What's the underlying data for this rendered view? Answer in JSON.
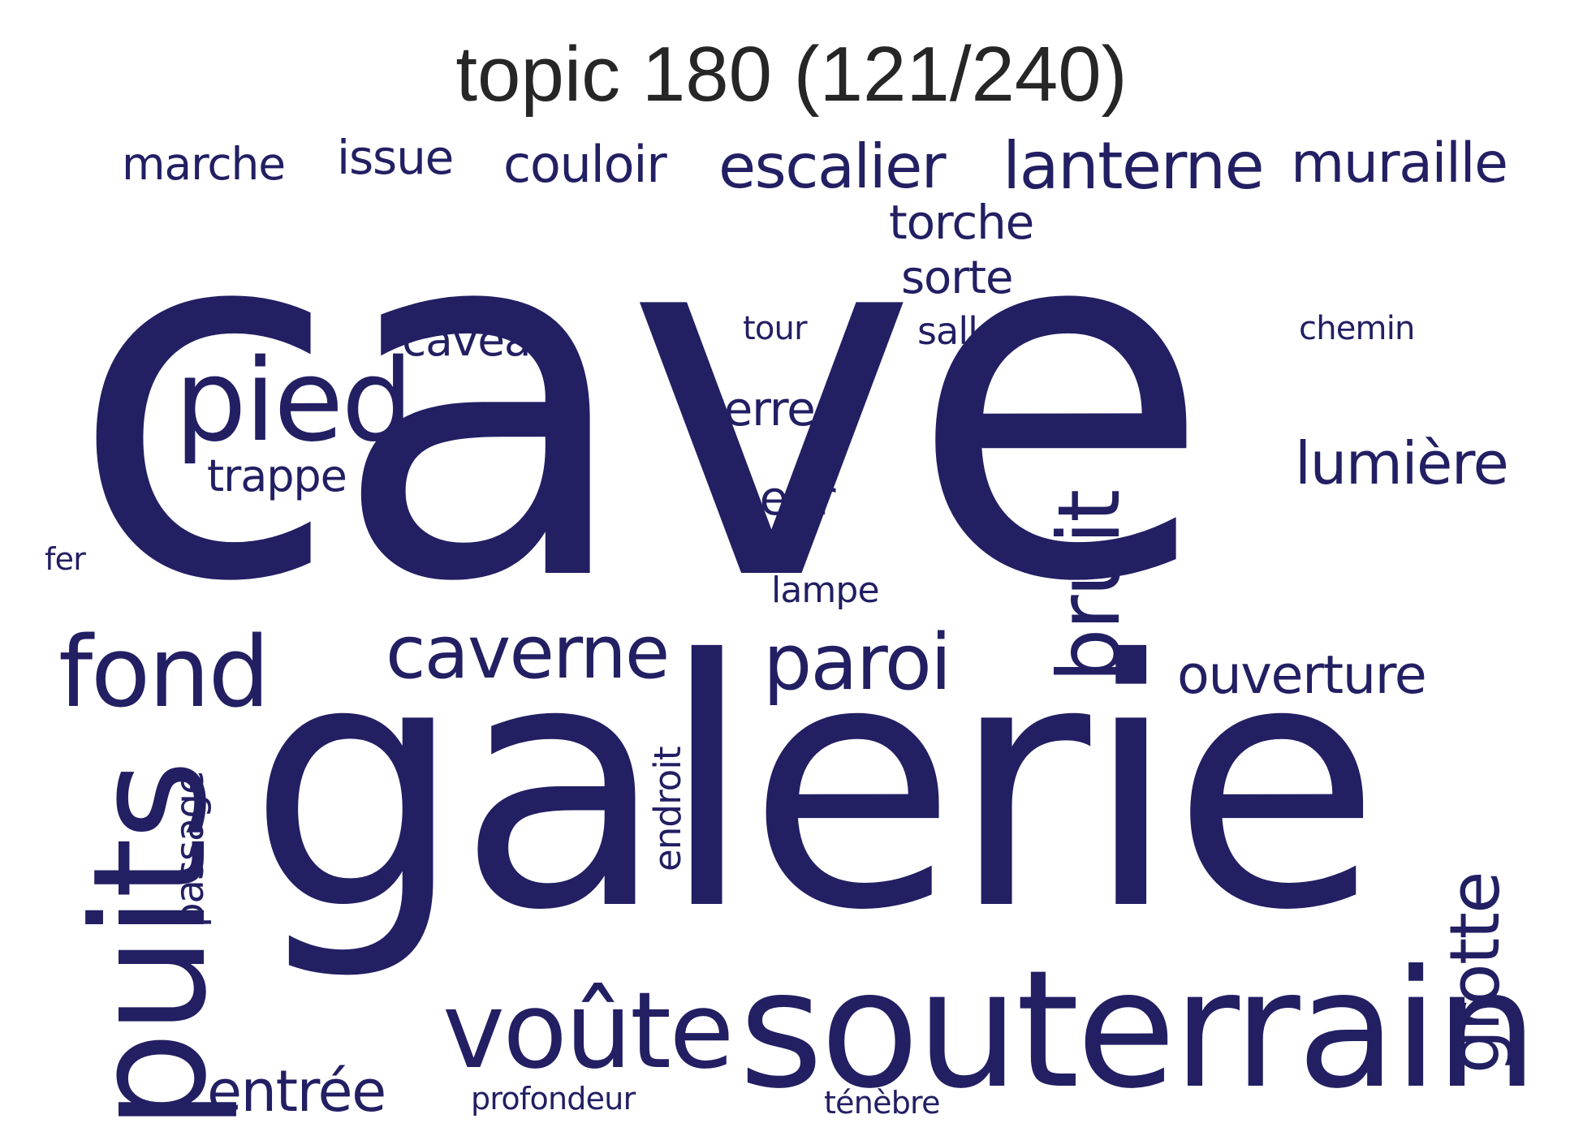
{
  "title": "topic 180 (121/240)",
  "word_color": "#221f63",
  "words": [
    {
      "text": "cave",
      "orientation": "horizontal"
    },
    {
      "text": "galerie",
      "orientation": "horizontal"
    },
    {
      "text": "souterrain",
      "orientation": "horizontal"
    },
    {
      "text": "puits",
      "orientation": "vertical"
    },
    {
      "text": "voûte",
      "orientation": "horizontal"
    },
    {
      "text": "pied",
      "orientation": "horizontal"
    },
    {
      "text": "fond",
      "orientation": "horizontal"
    },
    {
      "text": "bruit",
      "orientation": "vertical"
    },
    {
      "text": "grotte",
      "orientation": "vertical"
    },
    {
      "text": "paroi",
      "orientation": "horizontal"
    },
    {
      "text": "caverne",
      "orientation": "horizontal"
    },
    {
      "text": "lanterne",
      "orientation": "horizontal"
    },
    {
      "text": "escalier",
      "orientation": "horizontal"
    },
    {
      "text": "muraille",
      "orientation": "horizontal"
    },
    {
      "text": "lumière",
      "orientation": "horizontal"
    },
    {
      "text": "ouverture",
      "orientation": "horizontal"
    },
    {
      "text": "entrée",
      "orientation": "horizontal"
    },
    {
      "text": "couloir",
      "orientation": "horizontal"
    },
    {
      "text": "issue",
      "orientation": "horizontal"
    },
    {
      "text": "marche",
      "orientation": "horizontal"
    },
    {
      "text": "torche",
      "orientation": "horizontal"
    },
    {
      "text": "sorte",
      "orientation": "horizontal"
    },
    {
      "text": "trappe",
      "orientation": "horizontal"
    },
    {
      "text": "caveau",
      "orientation": "horizontal"
    },
    {
      "text": "terre",
      "orientation": "horizontal"
    },
    {
      "text": "lueur",
      "orientation": "horizontal"
    },
    {
      "text": "passage",
      "orientation": "vertical"
    },
    {
      "text": "endroit",
      "orientation": "vertical"
    },
    {
      "text": "lampe",
      "orientation": "horizontal"
    },
    {
      "text": "salle",
      "orientation": "horizontal"
    },
    {
      "text": "tour",
      "orientation": "horizontal"
    },
    {
      "text": "chemin",
      "orientation": "horizontal"
    },
    {
      "text": "profondeur",
      "orientation": "horizontal"
    },
    {
      "text": "ténèbre",
      "orientation": "horizontal"
    },
    {
      "text": "fer",
      "orientation": "horizontal"
    }
  ]
}
